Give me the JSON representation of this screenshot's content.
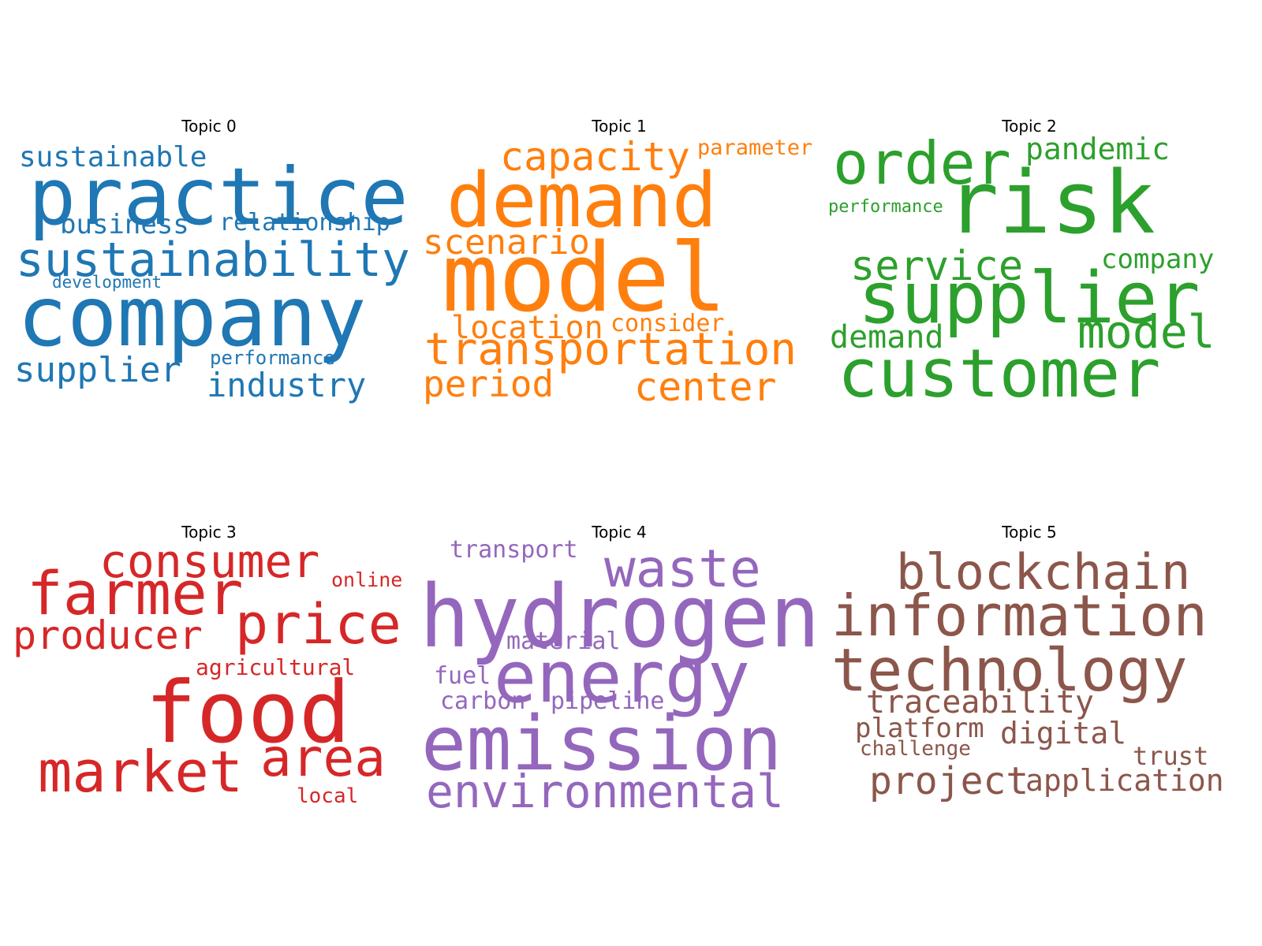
{
  "topics": [
    {
      "title": "Topic 0",
      "color": "#1f77b4",
      "words": [
        "practice",
        "company",
        "sustainability",
        "sustainable",
        "business",
        "relationship",
        "development",
        "supplier",
        "performance",
        "industry"
      ]
    },
    {
      "title": "Topic 1",
      "color": "#ff7f0e",
      "words": [
        "capacity",
        "parameter",
        "demand",
        "scenario",
        "model",
        "location",
        "consider",
        "transportation",
        "period",
        "center"
      ]
    },
    {
      "title": "Topic 2",
      "color": "#2ca02c",
      "words": [
        "order",
        "pandemic",
        "performance",
        "risk",
        "service",
        "company",
        "supplier",
        "demand",
        "model",
        "customer"
      ]
    },
    {
      "title": "Topic 3",
      "color": "#d62728",
      "words": [
        "consumer",
        "farmer",
        "online",
        "producer",
        "price",
        "agricultural",
        "food",
        "market",
        "area",
        "local"
      ]
    },
    {
      "title": "Topic 4",
      "color": "#9467bd",
      "words": [
        "transport",
        "waste",
        "hydrogen",
        "material",
        "fuel",
        "energy",
        "carbon",
        "pipeline",
        "emission",
        "environmental"
      ]
    },
    {
      "title": "Topic 5",
      "color": "#8c564b",
      "words": [
        "blockchain",
        "information",
        "technology",
        "traceability",
        "platform",
        "digital",
        "challenge",
        "trust",
        "project",
        "application"
      ]
    }
  ]
}
